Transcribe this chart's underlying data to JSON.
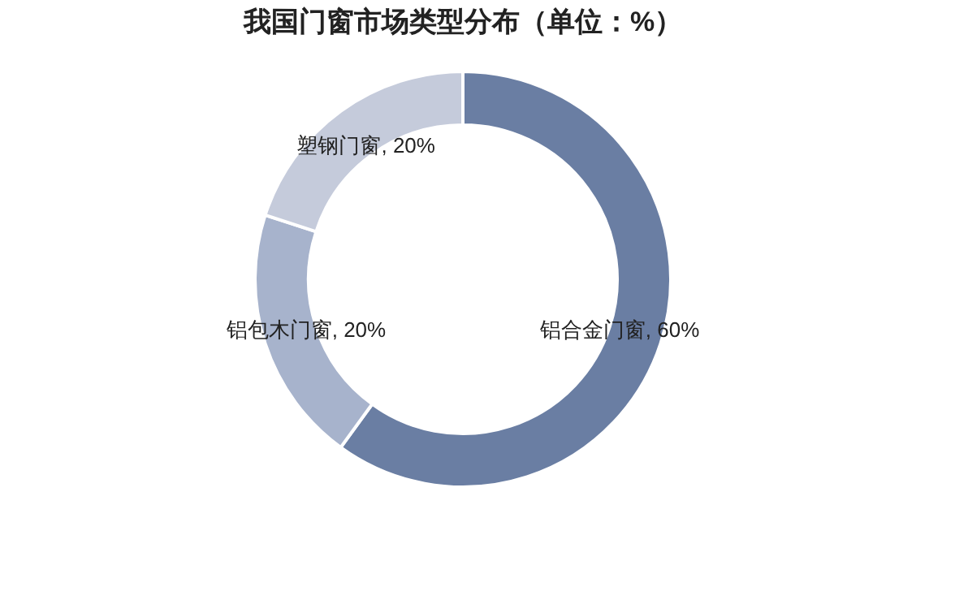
{
  "chart_data": {
    "type": "donut",
    "title": "我国门窗市场类型分布（单位：%）",
    "categories": [
      "铝合金门窗",
      "铝包木门窗",
      "塑钢门窗"
    ],
    "values": [
      60,
      20,
      20
    ],
    "colors": [
      "#6a7ea3",
      "#a7b3cc",
      "#c5cbdb"
    ],
    "value_labels": [
      "60%",
      "20%",
      "20%"
    ],
    "legend": false
  }
}
